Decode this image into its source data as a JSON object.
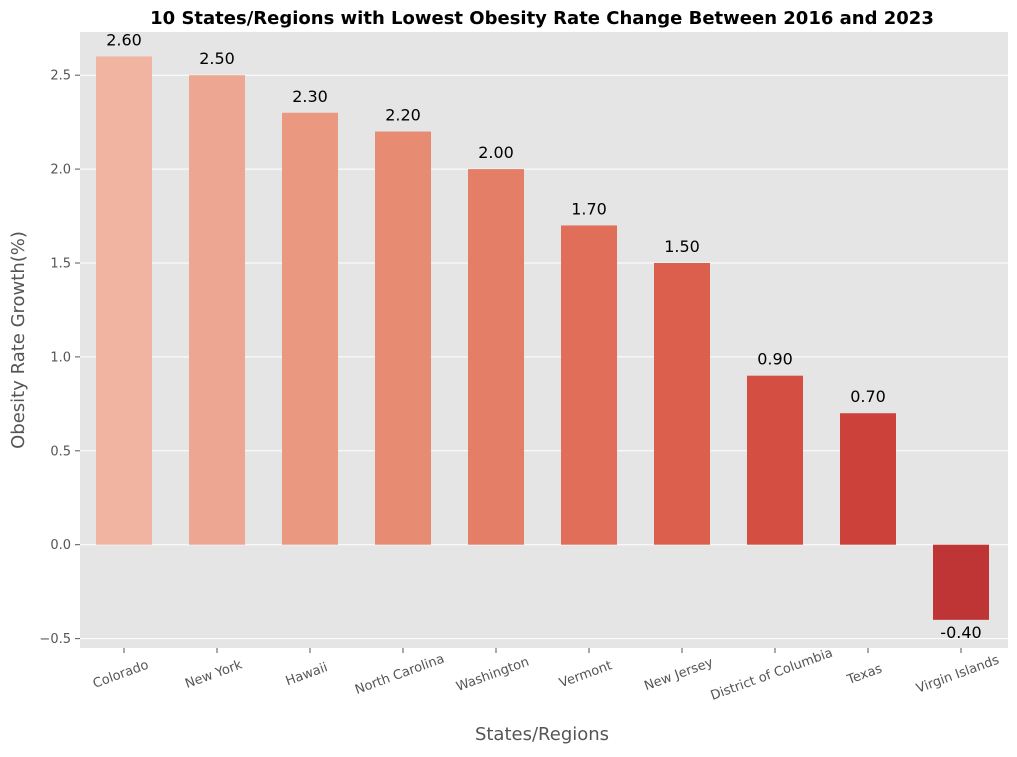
{
  "chart_data": {
    "type": "bar",
    "title": "10 States/Regions with Lowest Obesity Rate Change Between 2016 and 2023",
    "xlabel": "States/Regions",
    "ylabel": "Obesity Rate Growth(%)",
    "categories": [
      "Colorado",
      "New York",
      "Hawaii",
      "North Carolina",
      "Washington",
      "Vermont",
      "New Jersey",
      "District of Columbia",
      "Texas",
      "Virgin Islands"
    ],
    "values": [
      2.6,
      2.5,
      2.3,
      2.2,
      2.0,
      1.7,
      1.5,
      0.9,
      0.7,
      -0.4
    ],
    "data_labels": [
      "2.60",
      "2.50",
      "2.30",
      "2.20",
      "2.00",
      "1.70",
      "1.50",
      "0.90",
      "0.70",
      "-0.40"
    ],
    "yticks": [
      -0.5,
      0.0,
      0.5,
      1.0,
      1.5,
      2.0,
      2.5
    ],
    "ytick_labels": [
      "−0.5",
      "0.0",
      "0.5",
      "1.0",
      "1.5",
      "2.0",
      "2.5"
    ],
    "ylim": [
      -0.55,
      2.73
    ],
    "grid": true,
    "legend": "none",
    "colors": [
      "#f0b4a0",
      "#eda691",
      "#ea9880",
      "#e78b73",
      "#e47e66",
      "#e06e58",
      "#dc5f4d",
      "#d54e42",
      "#cc4139",
      "#bf3535"
    ],
    "background": "#e5e5e5",
    "grid_color": "#ffffff",
    "style": "ggplot"
  }
}
